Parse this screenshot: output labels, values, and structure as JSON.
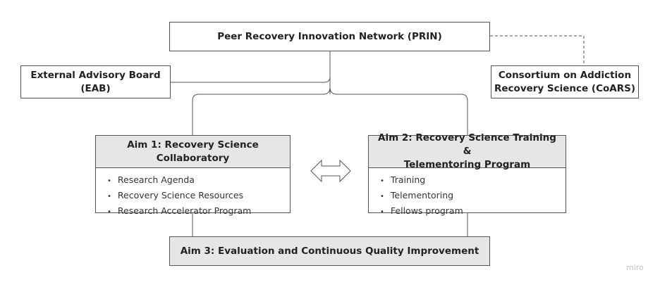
{
  "nodes": {
    "prin": "Peer Recovery Innovation Network (PRIN)",
    "eab": [
      "External Advisory Board",
      "(EAB)"
    ],
    "coars": [
      "Consortium on Addiction",
      "Recovery Science (CoARS)"
    ],
    "aim1": {
      "title": [
        "Aim 1: Recovery Science",
        "Collaboratory"
      ],
      "items": [
        "Research Agenda",
        "Recovery Science Resources",
        "Research Accelerator Program"
      ]
    },
    "aim2": {
      "title": [
        "Aim 2: Recovery Science Training &",
        "Telementoring Program"
      ],
      "items": [
        "Training",
        "Telementoring",
        "Fellows program"
      ]
    },
    "aim3": "Aim 3: Evaluation and Continuous Quality Improvement"
  },
  "edges": [
    {
      "from": "prin",
      "to": "eab",
      "style": "solid"
    },
    {
      "from": "prin",
      "to": "coars",
      "style": "dashed"
    },
    {
      "from": "prin",
      "to": "aim1",
      "style": "solid"
    },
    {
      "from": "prin",
      "to": "aim2",
      "style": "solid"
    },
    {
      "from": "aim1",
      "to": "aim2",
      "style": "double-arrow"
    },
    {
      "from": "aim1",
      "to": "aim3",
      "style": "solid"
    },
    {
      "from": "aim2",
      "to": "aim3",
      "style": "solid"
    }
  ],
  "brand": "miro",
  "colors": {
    "line": "#555555",
    "header_fill": "#e6e6e6",
    "arrow_fill": "#ffffff"
  }
}
